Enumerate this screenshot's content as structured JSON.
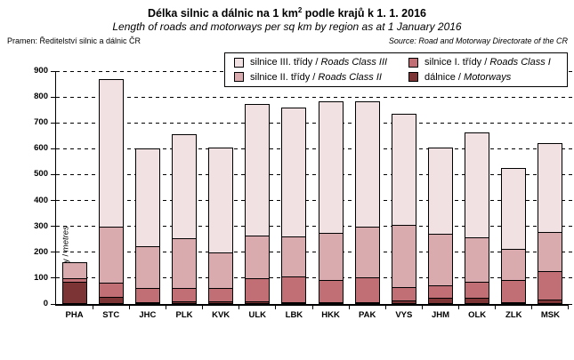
{
  "title": {
    "pre": "Délka silnic a dálnic na 1 km",
    "sup": "2",
    "post": " podle krajů k 1. 1. 2016"
  },
  "subtitle": "Length of roads and motorways per sq km by region as at 1 January 2016",
  "source_left": "Pramen: Ředitelství silnic a dálnic ČR",
  "source_right": "Source: Road and Motorway Directorate of the CR",
  "y_axis_title": {
    "cz": "metry",
    "sep": " / ",
    "en": "metres"
  },
  "chart_data": {
    "type": "bar",
    "stacked": true,
    "grid": "horizontal-dashed",
    "legend_position": "top-right-overlay",
    "categories": [
      "PHA",
      "STC",
      "JHC",
      "PLK",
      "KVK",
      "ULK",
      "LBK",
      "HKK",
      "PAK",
      "VYS",
      "JHM",
      "OLK",
      "ZLK",
      "MSK"
    ],
    "series": [
      {
        "name": "dálnice / Motorways",
        "color": "#7c3434",
        "values": [
          85,
          27,
          5,
          11,
          10,
          12,
          2,
          4,
          4,
          14,
          25,
          23,
          8,
          18
        ]
      },
      {
        "name": "silnice I. třídy / Roads Class I",
        "color": "#c16f74",
        "values": [
          17,
          58,
          58,
          54,
          54,
          91,
          103,
          89,
          98,
          54,
          52,
          65,
          87,
          112
        ]
      },
      {
        "name": "silnice II. třídy / Roads Class II",
        "color": "#d9aaae",
        "values": [
          68,
          222,
          167,
          197,
          143,
          169,
          157,
          187,
          200,
          245,
          203,
          177,
          124,
          155
        ]
      },
      {
        "name": "silnice III. třídy / Roads Class III",
        "color": "#f1e1e2",
        "values": [
          0,
          573,
          380,
          406,
          408,
          513,
          503,
          510,
          490,
          432,
          335,
          410,
          318,
          348
        ]
      }
    ],
    "totals": [
      170,
      880,
      610,
      668,
      615,
      785,
      765,
      790,
      792,
      745,
      615,
      675,
      537,
      633
    ],
    "ylim": [
      0,
      900
    ],
    "ytick_step": 100,
    "ylabel": "metry / metres",
    "legend": [
      {
        "cz": "silnice III. třídy",
        "sep": " / ",
        "en": "Roads Class III",
        "color": "#f1e1e2"
      },
      {
        "cz": "silnice II. třídy",
        "sep": " / ",
        "en": "Roads Class II",
        "color": "#d9aaae"
      },
      {
        "cz": "silnice I. třídy",
        "sep": " / ",
        "en": "Roads Class I",
        "color": "#c16f74"
      },
      {
        "cz": "dálnice",
        "sep": " / ",
        "en": "Motorways",
        "color": "#7c3434"
      }
    ]
  }
}
